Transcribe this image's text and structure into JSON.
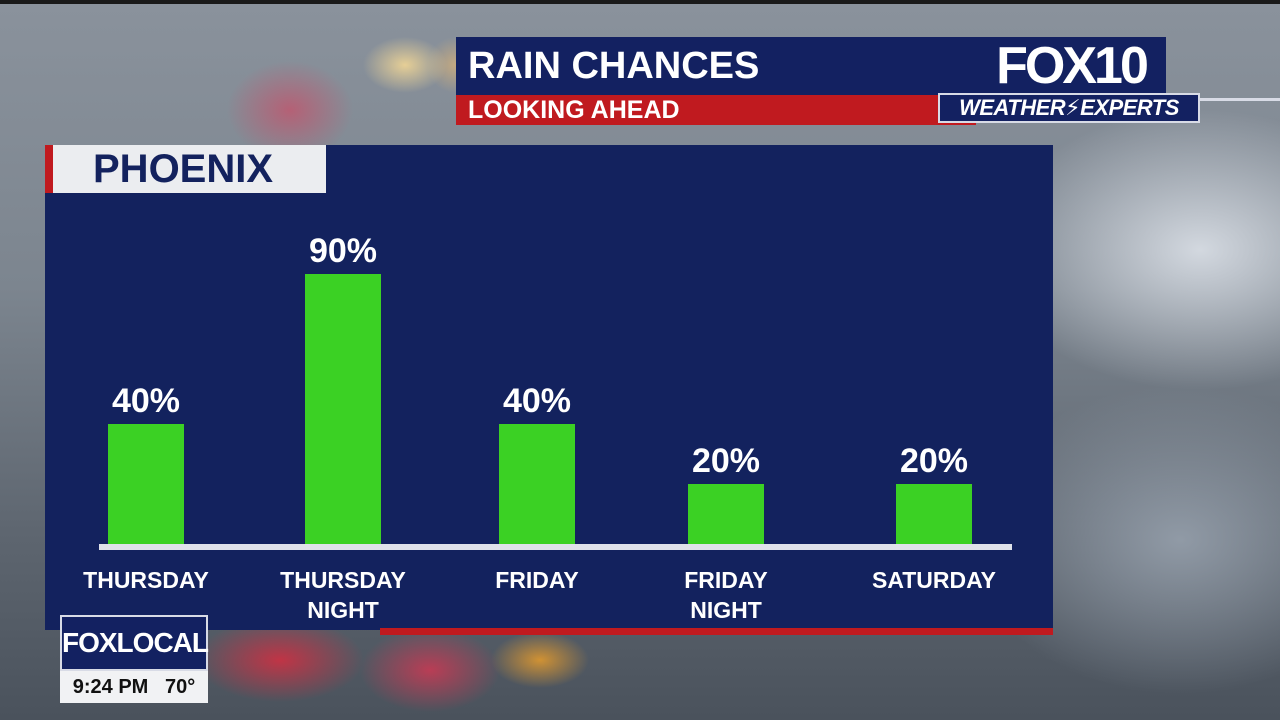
{
  "header": {
    "title": "RAIN CHANCES",
    "subtitle": "LOOKING AHEAD"
  },
  "brand": {
    "logo": "FOX10",
    "tagline": "WEATHER⚡EXPERTS"
  },
  "chart_data": {
    "type": "bar",
    "title": "PHOENIX",
    "categories": [
      [
        "THURSDAY"
      ],
      [
        "THURSDAY",
        "NIGHT"
      ],
      [
        "FRIDAY"
      ],
      [
        "FRIDAY",
        "NIGHT"
      ],
      [
        "SATURDAY"
      ]
    ],
    "values": [
      40,
      90,
      40,
      20,
      20
    ],
    "value_labels": [
      "40%",
      "90%",
      "40%",
      "20%",
      "20%"
    ],
    "unit": "%",
    "ylim": [
      0,
      100
    ],
    "bar_color": "#3bd124",
    "grid": false
  },
  "bug": {
    "logo": "FOXLOCAL",
    "time": "9:24 PM",
    "temp": "70°"
  },
  "colors": {
    "navy": "#13225e",
    "red": "#c01a1f",
    "green": "#3bd124"
  }
}
